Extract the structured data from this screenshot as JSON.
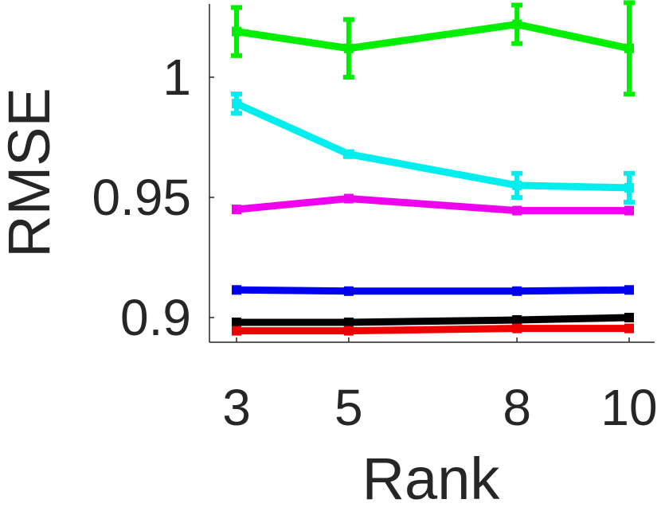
{
  "chart_data": {
    "type": "line",
    "title": "",
    "xlabel": "Rank",
    "ylabel": "RMSE",
    "x": [
      3,
      5,
      8,
      10
    ],
    "x_tick_labels": [
      "3",
      "5",
      "8",
      "10"
    ],
    "y_ticks": [
      0.9,
      0.95,
      1
    ],
    "y_tick_labels": [
      "0.9",
      "0.95",
      "1"
    ],
    "xlim": [
      3,
      10
    ],
    "ylim": [
      0.89,
      1.03
    ],
    "grid": false,
    "series": [
      {
        "color": "#00ee00",
        "values": [
          1.019,
          1.012,
          1.022,
          1.012
        ],
        "errors": [
          0.01,
          0.012,
          0.008,
          0.019
        ]
      },
      {
        "color": "#00eeee",
        "values": [
          0.989,
          0.968,
          0.955,
          0.954
        ],
        "errors": [
          0.004,
          0.001,
          0.005,
          0.006
        ]
      },
      {
        "color": "#ee00ee",
        "values": [
          0.945,
          0.9495,
          0.9445,
          0.9445
        ],
        "errors": [
          0,
          0,
          0,
          0
        ]
      },
      {
        "color": "#0000ee",
        "values": [
          0.9115,
          0.911,
          0.911,
          0.9115
        ],
        "errors": [
          0,
          0,
          0,
          0
        ]
      },
      {
        "color": "#000000",
        "values": [
          0.898,
          0.898,
          0.899,
          0.9
        ],
        "errors": [
          0,
          0,
          0,
          0
        ]
      },
      {
        "color": "#ee0000",
        "values": [
          0.8945,
          0.8945,
          0.8955,
          0.8955
        ],
        "errors": [
          0,
          0,
          0,
          0
        ]
      }
    ]
  }
}
